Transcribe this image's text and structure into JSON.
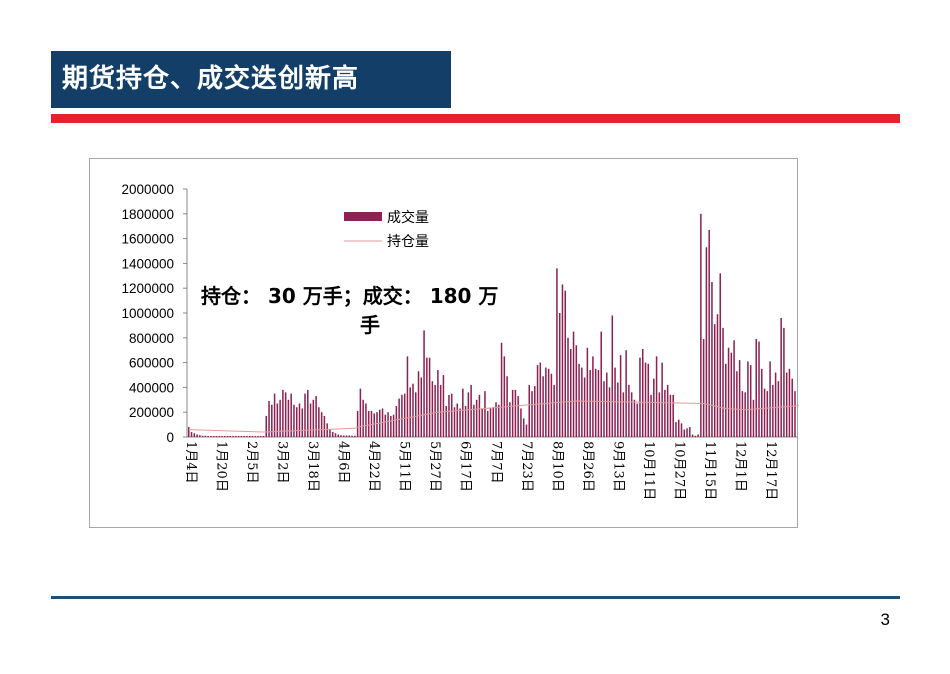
{
  "slide": {
    "title": "期货持仓、成交迭创新高",
    "page_number": "3"
  },
  "colors": {
    "title_bg": "#133e68",
    "red_rule": "#e8202a",
    "bottom_rule": "#1d4f73",
    "bar": "#8b2252",
    "line": "#e39a9a"
  },
  "chart_data": {
    "type": "bar",
    "title": "",
    "xlabel": "",
    "ylabel": "",
    "ylim": [
      0,
      2000000
    ],
    "yticks": [
      "0",
      "200000",
      "400000",
      "600000",
      "800000",
      "1000000",
      "1200000",
      "1400000",
      "1600000",
      "1800000",
      "2000000"
    ],
    "categories_shown": [
      "1月4日",
      "1月20日",
      "2月5日",
      "3月2日",
      "3月18日",
      "4月6日",
      "4月22日",
      "5月11日",
      "5月27日",
      "6月17日",
      "7月7日",
      "7月23日",
      "8月10日",
      "8月26日",
      "9月13日",
      "10月11日",
      "10月27日",
      "11月15日",
      "12月1日",
      "12月17日"
    ],
    "legend": {
      "placement": "top-center",
      "items": [
        "成交量",
        "持仓量"
      ]
    },
    "annotation": [
      "持仓： 30 万手；成交： 180 万",
      "手"
    ],
    "series": [
      {
        "name": "成交量",
        "type": "bar",
        "values": [
          80000,
          40000,
          30000,
          20000,
          15000,
          10000,
          10000,
          8000,
          8000,
          8000,
          8000,
          8000,
          8000,
          8000,
          8000,
          8000,
          8000,
          8000,
          8000,
          8000,
          8000,
          8000,
          8000,
          8000,
          8000,
          8000,
          8000,
          8000,
          170000,
          290000,
          260000,
          350000,
          270000,
          300000,
          380000,
          360000,
          300000,
          350000,
          260000,
          240000,
          270000,
          230000,
          350000,
          380000,
          270000,
          300000,
          330000,
          240000,
          200000,
          170000,
          110000,
          60000,
          40000,
          30000,
          20000,
          15000,
          12000,
          12000,
          12000,
          10000,
          10000,
          210000,
          390000,
          300000,
          270000,
          210000,
          210000,
          190000,
          200000,
          220000,
          230000,
          180000,
          200000,
          170000,
          180000,
          250000,
          310000,
          340000,
          350000,
          650000,
          400000,
          430000,
          360000,
          530000,
          480000,
          860000,
          640000,
          640000,
          450000,
          420000,
          540000,
          420000,
          500000,
          250000,
          340000,
          350000,
          240000,
          270000,
          230000,
          390000,
          250000,
          360000,
          420000,
          260000,
          300000,
          340000,
          230000,
          370000,
          210000,
          230000,
          240000,
          280000,
          260000,
          760000,
          650000,
          490000,
          280000,
          380000,
          380000,
          330000,
          230000,
          150000,
          100000,
          420000,
          370000,
          410000,
          580000,
          600000,
          490000,
          560000,
          550000,
          510000,
          420000,
          1360000,
          1000000,
          1230000,
          1180000,
          800000,
          710000,
          850000,
          740000,
          590000,
          560000,
          480000,
          720000,
          540000,
          650000,
          550000,
          540000,
          850000,
          450000,
          520000,
          400000,
          980000,
          560000,
          440000,
          660000,
          360000,
          700000,
          420000,
          360000,
          300000,
          270000,
          640000,
          710000,
          600000,
          590000,
          340000,
          470000,
          650000,
          360000,
          600000,
          380000,
          420000,
          340000,
          340000,
          120000,
          140000,
          110000,
          60000,
          70000,
          80000,
          20000,
          10000,
          20000,
          1800000,
          790000,
          1530000,
          1670000,
          1250000,
          910000,
          990000,
          1320000,
          880000,
          590000,
          720000,
          680000,
          780000,
          530000,
          620000,
          370000,
          360000,
          610000,
          580000,
          300000,
          790000,
          770000,
          550000,
          390000,
          370000,
          610000,
          420000,
          520000,
          450000,
          960000,
          880000,
          520000,
          550000,
          470000,
          370000
        ]
      },
      {
        "name": "持仓量",
        "type": "line",
        "points": [
          [
            0,
            60000
          ],
          [
            27,
            40000
          ],
          [
            60,
            70000
          ],
          [
            61,
            80000
          ],
          [
            90,
            200000
          ],
          [
            140,
            290000
          ],
          [
            186,
            270000
          ],
          [
            194,
            230000
          ],
          [
            201,
            220000
          ],
          [
            231,
            270000
          ]
        ]
      }
    ]
  }
}
